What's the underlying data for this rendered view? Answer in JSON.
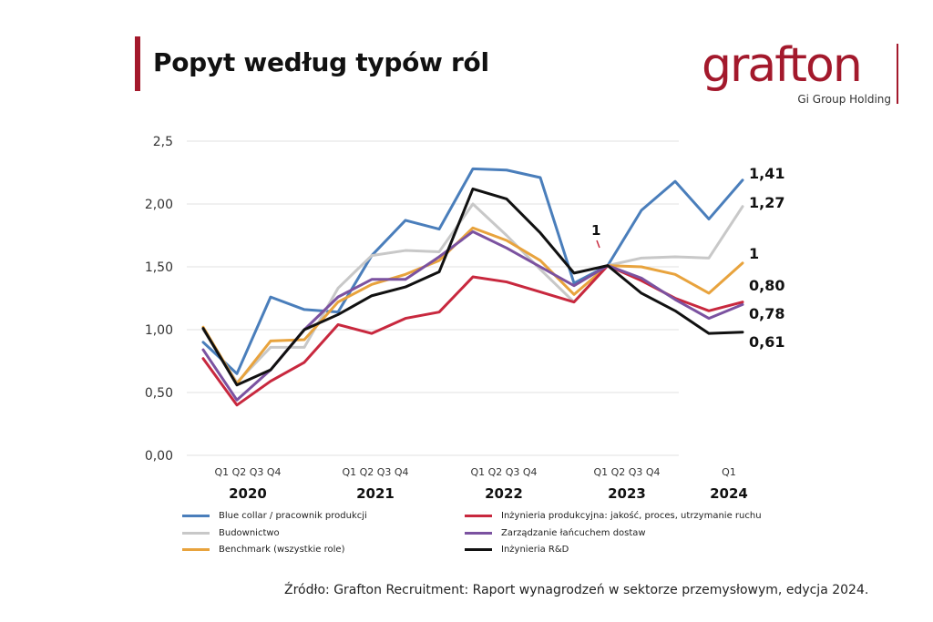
{
  "title": "Popyt według typów ról",
  "logo": {
    "name": "grafton",
    "sub": "Gi Group Holding"
  },
  "source": "Źródło: Grafton Recruitment: Raport wynagrodzeń w sektorze przemysłowym, edycja 2024.",
  "chart_data": {
    "type": "line",
    "ylim": [
      0,
      2.5
    ],
    "y_ticks": [
      "0,00",
      "0,50",
      "1,00",
      "1,50",
      "2,00",
      "2,5"
    ],
    "y_tick_values": [
      0,
      0.5,
      1.0,
      1.5,
      2.0,
      2.5
    ],
    "quarter_labels": [
      "Q1 Q2 Q3 Q4",
      "Q1 Q2 Q3 Q4",
      "Q1 Q2 Q3 Q4",
      "Q1 Q2 Q3 Q4",
      "Q1"
    ],
    "years": [
      "2020",
      "2021",
      "2022",
      "2023",
      "2024"
    ],
    "x": [
      "2020 Q1",
      "2020 Q2",
      "2020 Q3",
      "2020 Q4",
      "2021 Q1",
      "2021 Q2",
      "2021 Q3",
      "2021 Q4",
      "2022 Q1",
      "2022 Q2",
      "2022 Q3",
      "2022 Q4",
      "2023 Q1",
      "2023 Q2",
      "2023 Q3",
      "2023 Q4",
      "2024 Q1"
    ],
    "x_positions": [
      223,
      260,
      297,
      334,
      371,
      408,
      445,
      482,
      519,
      556,
      593,
      630,
      667,
      704,
      741,
      778,
      815
    ],
    "series": [
      {
        "name": "Blue collar / pracownik produkcji",
        "color": "#4a7ebb",
        "values": [
          0.9,
          0.65,
          1.26,
          1.16,
          1.14,
          1.59,
          1.87,
          1.8,
          2.28,
          2.27,
          2.21,
          1.37,
          1.51,
          1.95,
          2.18,
          1.88,
          2.19
        ]
      },
      {
        "name": "Budownictwo",
        "color": "#c8c8c8",
        "values": [
          1.0,
          0.58,
          0.86,
          0.86,
          1.33,
          1.59,
          1.63,
          1.62,
          2.0,
          1.75,
          1.48,
          1.22,
          1.51,
          1.57,
          1.58,
          1.57,
          1.98
        ]
      },
      {
        "name": "Benchmark (wszystkie role)",
        "color": "#e8a33d",
        "values": [
          1.02,
          0.57,
          0.91,
          0.92,
          1.22,
          1.36,
          1.44,
          1.55,
          1.81,
          1.71,
          1.55,
          1.28,
          1.51,
          1.5,
          1.44,
          1.29,
          1.53
        ]
      },
      {
        "name": "Inżynieria produkcyjna: jakość, proces, utrzymanie ruchu",
        "color": "#c8283e",
        "values": [
          0.77,
          0.4,
          0.59,
          0.74,
          1.04,
          0.97,
          1.09,
          1.14,
          1.42,
          1.38,
          1.3,
          1.22,
          1.51,
          1.39,
          1.25,
          1.15,
          1.22
        ]
      },
      {
        "name": "Zarządzanie łańcuchem dostaw",
        "color": "#7b52a0",
        "values": [
          0.84,
          0.44,
          0.68,
          1.0,
          1.26,
          1.4,
          1.4,
          1.58,
          1.78,
          1.65,
          1.5,
          1.35,
          1.51,
          1.41,
          1.24,
          1.09,
          1.2
        ]
      },
      {
        "name": "Inżynieria R&D",
        "color": "#111111",
        "values": [
          1.01,
          0.56,
          0.68,
          1.0,
          1.12,
          1.27,
          1.34,
          1.46,
          2.12,
          2.04,
          1.77,
          1.45,
          1.51,
          1.29,
          1.15,
          0.97,
          0.98
        ]
      }
    ],
    "value_labels": [
      {
        "text": "1,41",
        "series": "Blue collar / pracownik produkcji"
      },
      {
        "text": "1,27",
        "series": "Budownictwo"
      },
      {
        "text": "1",
        "series": "Benchmark (wszystkie role)"
      },
      {
        "text": "0,80",
        "series": "Inżynieria produkcyjna: jakość, proces, utrzymanie ruchu"
      },
      {
        "text": "0,78",
        "series": "Zarządzanie łańcuchem dostaw"
      },
      {
        "text": "0,61",
        "series": "Inżynieria R&D"
      }
    ],
    "annotation": {
      "text": "1",
      "x": "2023 Q1"
    }
  }
}
